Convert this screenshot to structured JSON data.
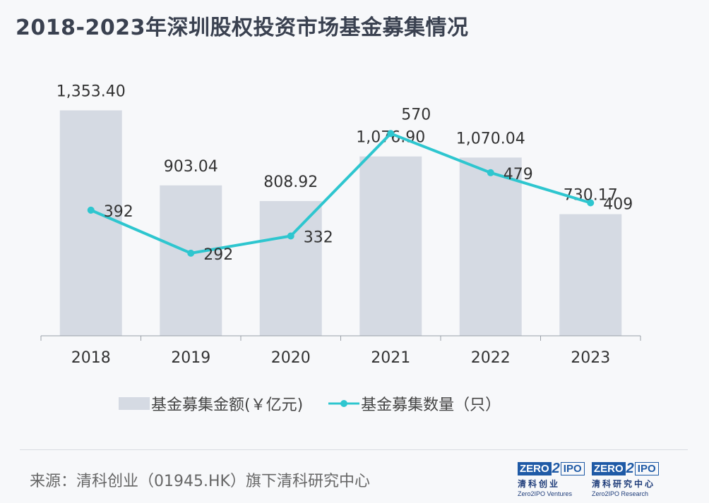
{
  "title": "2018-2023年深圳股权投资市场基金募集情况",
  "chart_data": {
    "type": "bar",
    "categories": [
      "2018",
      "2019",
      "2020",
      "2021",
      "2022",
      "2023"
    ],
    "series": [
      {
        "name": "基金募集金额(￥亿元)",
        "type": "bar",
        "axis": "left",
        "values": [
          1353.4,
          903.04,
          808.92,
          1076.9,
          1070.04,
          730.17
        ],
        "labels": [
          "1,353.40",
          "903.04",
          "808.92",
          "1,076.90",
          "1,070.04",
          "730.17"
        ]
      },
      {
        "name": "基金募集数量（只）",
        "type": "line",
        "axis": "right",
        "values": [
          392,
          292,
          332,
          570,
          479,
          409
        ],
        "labels": [
          "392",
          "292",
          "332",
          "570",
          "479",
          "409"
        ]
      }
    ],
    "bar_axis_range": [
      0,
      1550
    ],
    "line_axis_range": [
      100,
      700
    ],
    "grid": false,
    "legend_position": "bottom",
    "colors": {
      "bar": "#d5dae3",
      "line": "#2ec6cf",
      "text": "#333333"
    }
  },
  "legend": {
    "bar_label": "基金募集金额(￥亿元)",
    "line_label": "基金募集数量（只）"
  },
  "source": "来源：清科创业（01945.HK）旗下清科研究中心",
  "logos": [
    {
      "mark_left": "ZERO",
      "mark_mid": "2",
      "mark_right": "IPO",
      "cn": "清科创业",
      "en": "Zero2IPO Ventures"
    },
    {
      "mark_left": "ZERO",
      "mark_mid": "2",
      "mark_right": "IPO",
      "cn": "清科研究中心",
      "en": "Zero2IPO Research"
    }
  ]
}
